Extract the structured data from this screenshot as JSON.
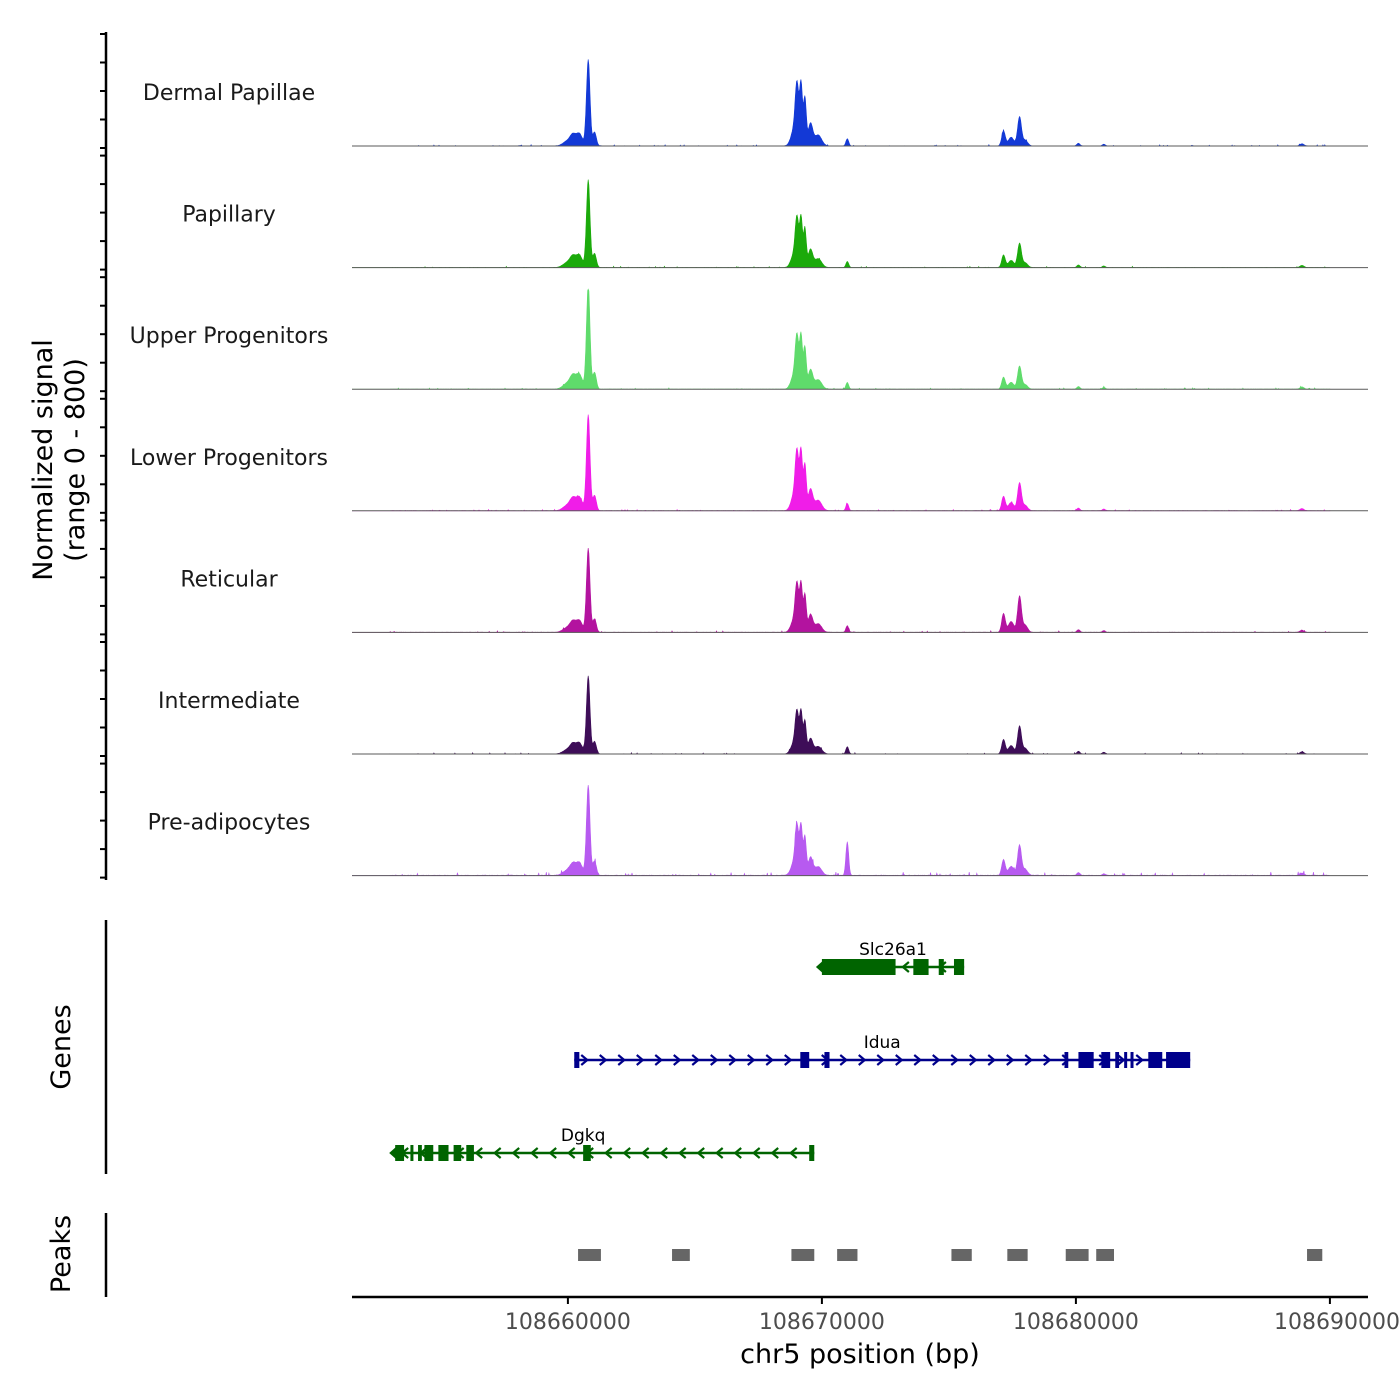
{
  "chart_data": {
    "type": "area",
    "region": "chr5:108651500-108691500",
    "y_axis_title_line1": "Normalized signal",
    "y_axis_title_line2": "(range 0 - 800)",
    "ylim": [
      0,
      800
    ],
    "xlabel": "chr5 position (bp)",
    "xlim": [
      108651500,
      108691500
    ],
    "x_ticks": [
      108660000,
      108670000,
      108680000,
      108690000
    ],
    "x_tick_labels": [
      "108660000",
      "108670000",
      "108680000",
      "108690000"
    ],
    "tracks": [
      {
        "name": "Dermal Papillae",
        "color": "#1339D6",
        "peak_heights": [
          720,
          510,
          240,
          60
        ],
        "noise": 0.5
      },
      {
        "name": "Papillary",
        "color": "#1BAA0B",
        "peak_heights": [
          730,
          410,
          200,
          50
        ],
        "noise": 0.5
      },
      {
        "name": "Upper Progenitors",
        "color": "#5FDB6B",
        "peak_heights": [
          870,
          440,
          190,
          55
        ],
        "noise": 0.5
      },
      {
        "name": "Lower Progenitors",
        "color": "#F01DE8",
        "peak_heights": [
          800,
          490,
          230,
          60
        ],
        "noise": 0.5
      },
      {
        "name": "Reticular",
        "color": "#B3139F",
        "peak_heights": [
          700,
          400,
          300,
          55
        ],
        "noise": 0.6
      },
      {
        "name": "Intermediate",
        "color": "#3E0D58",
        "peak_heights": [
          650,
          350,
          230,
          60
        ],
        "noise": 0.5
      },
      {
        "name": "Pre-adipocytes",
        "color": "#B75AF0",
        "peak_heights": [
          750,
          410,
          250,
          280
        ],
        "noise": 1.4
      }
    ],
    "genes_label": "Genes",
    "genes": [
      {
        "name": "Slc26a1",
        "strand": "-",
        "start": 108670000,
        "end": 108675600,
        "color": "#006400",
        "exons": [
          [
            108670000,
            108672900
          ],
          [
            108673600,
            108674200
          ],
          [
            108674600,
            108674800
          ],
          [
            108675200,
            108675600
          ]
        ]
      },
      {
        "name": "Idua",
        "strand": "+",
        "start": 108660250,
        "end": 108684500,
        "color": "#00008B",
        "exons": [
          [
            108660250,
            108660450
          ],
          [
            108669150,
            108669500
          ],
          [
            108670100,
            108670300
          ],
          [
            108679550,
            108679700
          ],
          [
            108680100,
            108680700
          ],
          [
            108681000,
            108681350
          ],
          [
            108681550,
            108681700
          ],
          [
            108681900,
            108682000
          ],
          [
            108682150,
            108682250
          ],
          [
            108682850,
            108683400
          ],
          [
            108683550,
            108684500
          ]
        ]
      },
      {
        "name": "Dgkq",
        "strand": "-",
        "start": 108653200,
        "end": 108669700,
        "color": "#006400",
        "exons": [
          [
            108653200,
            108653550
          ],
          [
            108653800,
            108653900
          ],
          [
            108654100,
            108654250
          ],
          [
            108654350,
            108654700
          ],
          [
            108654900,
            108655300
          ],
          [
            108655500,
            108655800
          ],
          [
            108656000,
            108656300
          ],
          [
            108660600,
            108660900
          ],
          [
            108669500,
            108669700
          ]
        ]
      }
    ],
    "peaks_label": "Peaks",
    "peaks": [
      [
        108660400,
        108661300
      ],
      [
        108664100,
        108664800
      ],
      [
        108668800,
        108669700
      ],
      [
        108670600,
        108671400
      ],
      [
        108675100,
        108675900
      ],
      [
        108677300,
        108678100
      ],
      [
        108679600,
        108680500
      ],
      [
        108680800,
        108681500
      ],
      [
        108689100,
        108689700
      ]
    ]
  }
}
